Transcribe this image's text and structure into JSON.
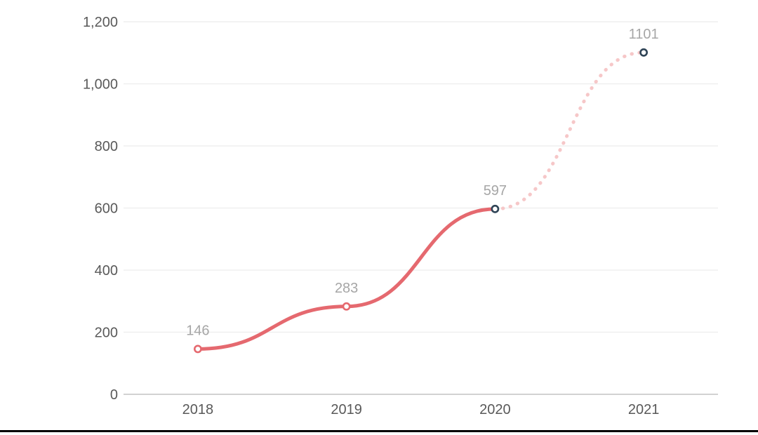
{
  "chart_data": {
    "type": "line",
    "title": "",
    "xlabel": "",
    "ylabel": "",
    "categories": [
      "2018",
      "2019",
      "2020",
      "2021"
    ],
    "series": [
      {
        "name": "value",
        "values": [
          146,
          283,
          597,
          1101
        ]
      }
    ],
    "point_labels": [
      "146",
      "283",
      "597",
      "1101"
    ],
    "solid_until_index": 2,
    "projection": {
      "from_index": 2,
      "to_index": 3,
      "style": "dotted"
    },
    "y_ticks": [
      {
        "value": 1200,
        "label": "1,200"
      },
      {
        "value": 1000,
        "label": "1,000"
      },
      {
        "value": 800,
        "label": "800"
      },
      {
        "value": 600,
        "label": "600"
      },
      {
        "value": 400,
        "label": "400"
      },
      {
        "value": 200,
        "label": "200"
      },
      {
        "value": 0,
        "label": "0"
      }
    ],
    "ylim": [
      0,
      1200
    ],
    "grid": true,
    "legend": false,
    "marker_colors": [
      "#e5696f",
      "#e5696f",
      "#2f4456",
      "#2f4456"
    ],
    "colors": {
      "line": "#e5696f",
      "projection": "#f6c7c8",
      "marker_fill": "#ffffff",
      "grid": "#efefef",
      "axis_line": "#d2d2d2",
      "tick_label": "#595959",
      "point_label": "#a6a6a6",
      "bottom_border": "#000000",
      "background": "#ffffff"
    }
  }
}
